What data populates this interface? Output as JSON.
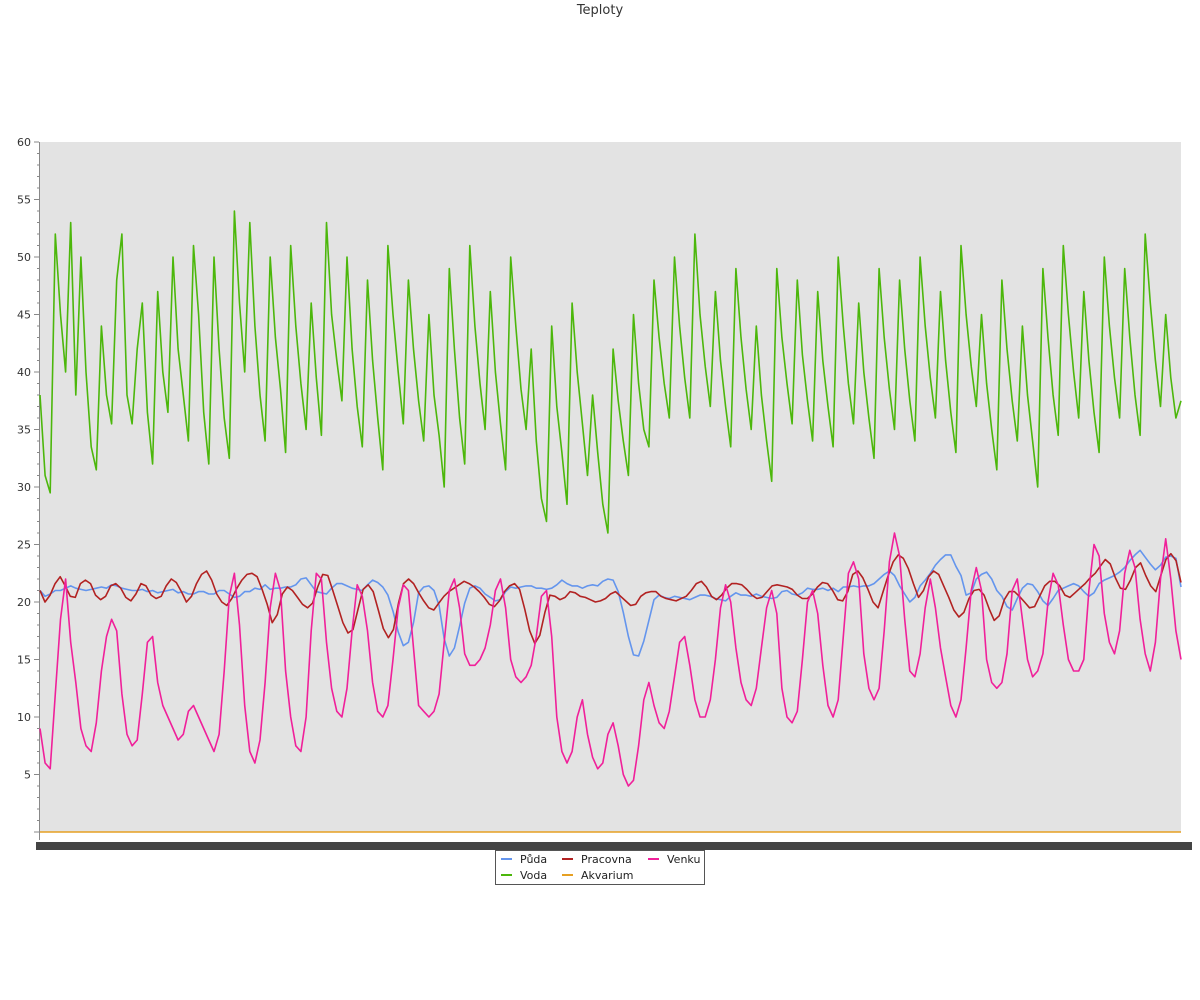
{
  "chart_data": {
    "type": "line",
    "title": "Teploty",
    "xlabel": "",
    "ylabel": "",
    "ylim": [
      0,
      60
    ],
    "yticks": [
      5,
      10,
      15,
      20,
      25,
      30,
      35,
      40,
      45,
      50,
      55,
      60
    ],
    "grid": false,
    "legend_position": "bottom-center",
    "background_color": "#e3e3e3",
    "x_count": 220,
    "series": [
      {
        "name": "Půda",
        "color": "#6495ed",
        "values": [
          21.0,
          20.5,
          20.7,
          21.0,
          21.0,
          21.2,
          21.4,
          21.2,
          21.1,
          21.0,
          21.1,
          21.2,
          21.3,
          21.2,
          21.5,
          21.4,
          21.2,
          21.1,
          21.0,
          21.0,
          21.1,
          20.9,
          21.0,
          20.8,
          20.9,
          21.0,
          21.1,
          20.8,
          20.9,
          20.7,
          20.7,
          20.9,
          20.9,
          20.7,
          20.7,
          21.0,
          21.0,
          20.7,
          20.4,
          20.5,
          20.9,
          20.9,
          21.2,
          21.1,
          21.5,
          21.1,
          21.2,
          21.2,
          21.3,
          21.3,
          21.5,
          22.0,
          22.1,
          21.5,
          20.9,
          20.8,
          20.7,
          21.2,
          21.6,
          21.6,
          21.4,
          21.2,
          21.1,
          21.0,
          21.5,
          21.9,
          21.7,
          21.3,
          20.6,
          19.2,
          17.4,
          16.2,
          16.5,
          18.2,
          20.8,
          21.3,
          21.4,
          21.0,
          19.7,
          16.8,
          15.3,
          16.0,
          17.9,
          19.9,
          21.2,
          21.4,
          21.2,
          20.7,
          20.4,
          20.1,
          20.2,
          20.9,
          21.3,
          21.2,
          21.3,
          21.4,
          21.4,
          21.2,
          21.2,
          21.1,
          21.2,
          21.5,
          21.9,
          21.6,
          21.4,
          21.4,
          21.2,
          21.4,
          21.5,
          21.4,
          21.8,
          22.0,
          21.9,
          20.9,
          19.1,
          17.0,
          15.4,
          15.3,
          16.6,
          18.4,
          20.2,
          20.6,
          20.4,
          20.3,
          20.5,
          20.4,
          20.3,
          20.2,
          20.4,
          20.6,
          20.6,
          20.5,
          20.3,
          20.2,
          20.1,
          20.5,
          20.8,
          20.6,
          20.6,
          20.5,
          20.7,
          20.5,
          20.4,
          20.3,
          20.4,
          20.9,
          21.0,
          20.7,
          20.6,
          20.8,
          21.2,
          21.1,
          21.1,
          21.2,
          21.0,
          21.2,
          20.9,
          21.3,
          21.3,
          21.4,
          21.3,
          21.4,
          21.4,
          21.6,
          22.0,
          22.4,
          22.7,
          22.3,
          21.4,
          20.7,
          20.0,
          20.4,
          21.4,
          21.9,
          22.5,
          23.2,
          23.7,
          24.1,
          24.1,
          23.1,
          22.3,
          20.6,
          20.8,
          22.0,
          22.4,
          22.6,
          22.0,
          21.0,
          20.5,
          19.6,
          19.3,
          20.3,
          21.2,
          21.6,
          21.5,
          20.9,
          20.1,
          19.7,
          20.3,
          21.0,
          21.2,
          21.4,
          21.6,
          21.4,
          20.9,
          20.5,
          20.8,
          21.6,
          21.9,
          22.1,
          22.3,
          22.6,
          23.0,
          23.6,
          24.1,
          24.5,
          23.9,
          23.3,
          22.8,
          23.2,
          23.9,
          24.0,
          23.8,
          21.3
        ]
      },
      {
        "name": "Pracovna",
        "color": "#b22222",
        "values": [
          21.0,
          20.0,
          20.6,
          21.6,
          22.2,
          21.4,
          20.5,
          20.4,
          21.6,
          21.9,
          21.6,
          20.6,
          20.2,
          20.5,
          21.4,
          21.6,
          21.2,
          20.4,
          20.1,
          20.7,
          21.6,
          21.4,
          20.6,
          20.3,
          20.5,
          21.4,
          22.0,
          21.7,
          20.9,
          20.0,
          20.5,
          21.6,
          22.4,
          22.7,
          21.9,
          20.7,
          20.0,
          19.7,
          20.3,
          21.2,
          21.9,
          22.4,
          22.5,
          22.2,
          21.1,
          19.8,
          18.2,
          18.9,
          20.7,
          21.3,
          21.0,
          20.4,
          19.8,
          19.5,
          19.9,
          21.3,
          22.4,
          22.3,
          21.0,
          19.6,
          18.2,
          17.3,
          17.6,
          19.4,
          21.1,
          21.5,
          20.9,
          19.3,
          17.7,
          16.9,
          17.6,
          19.9,
          21.6,
          22.0,
          21.6,
          20.8,
          20.1,
          19.5,
          19.3,
          19.9,
          20.5,
          20.9,
          21.2,
          21.5,
          21.8,
          21.6,
          21.3,
          20.9,
          20.4,
          19.8,
          19.6,
          20.1,
          20.9,
          21.4,
          21.6,
          21.1,
          19.4,
          17.5,
          16.4,
          17.1,
          19.1,
          20.6,
          20.5,
          20.2,
          20.4,
          20.9,
          20.8,
          20.5,
          20.4,
          20.2,
          20.0,
          20.1,
          20.3,
          20.7,
          20.9,
          20.5,
          20.1,
          19.7,
          19.8,
          20.5,
          20.8,
          20.9,
          20.9,
          20.5,
          20.3,
          20.2,
          20.1,
          20.3,
          20.5,
          21.0,
          21.6,
          21.8,
          21.3,
          20.5,
          20.2,
          20.6,
          21.2,
          21.6,
          21.6,
          21.5,
          21.1,
          20.6,
          20.3,
          20.4,
          20.9,
          21.4,
          21.5,
          21.4,
          21.3,
          21.1,
          20.6,
          20.3,
          20.3,
          20.7,
          21.3,
          21.7,
          21.6,
          21.0,
          20.2,
          20.1,
          20.9,
          22.4,
          22.7,
          22.1,
          21.1,
          20.0,
          19.5,
          20.9,
          22.3,
          23.5,
          24.1,
          23.8,
          22.9,
          21.6,
          20.4,
          21.0,
          22.2,
          22.7,
          22.4,
          21.4,
          20.4,
          19.3,
          18.7,
          19.1,
          20.3,
          21.0,
          21.1,
          20.6,
          19.4,
          18.4,
          18.8,
          20.2,
          20.9,
          20.9,
          20.5,
          20.0,
          19.5,
          19.6,
          20.5,
          21.4,
          21.8,
          21.8,
          21.4,
          20.6,
          20.4,
          20.8,
          21.2,
          21.6,
          22.1,
          22.5,
          23.1,
          23.7,
          23.3,
          22.1,
          21.2,
          21.1,
          21.9,
          23.0,
          23.4,
          22.3,
          21.4,
          20.9,
          22.3,
          23.7,
          24.2,
          23.6,
          21.7
        ]
      },
      {
        "name": "Venku",
        "color": "#f0209a",
        "values": [
          9.0,
          6.0,
          5.5,
          12.0,
          18.5,
          22.0,
          16.5,
          13.0,
          9.0,
          7.5,
          7.0,
          9.5,
          14.0,
          17.0,
          18.5,
          17.5,
          12.0,
          8.5,
          7.5,
          8.0,
          12.0,
          16.5,
          17.0,
          13.0,
          11.0,
          10.0,
          9.0,
          8.0,
          8.5,
          10.5,
          11.0,
          10.0,
          9.0,
          8.0,
          7.0,
          8.5,
          14.0,
          20.5,
          22.5,
          18.0,
          11.0,
          7.0,
          6.0,
          8.0,
          13.0,
          19.5,
          22.5,
          21.0,
          14.0,
          10.0,
          7.5,
          7.0,
          10.0,
          17.5,
          22.5,
          22.0,
          16.5,
          12.5,
          10.5,
          10.0,
          12.5,
          17.5,
          21.5,
          20.5,
          17.5,
          13.0,
          10.5,
          10.0,
          11.0,
          15.0,
          19.5,
          21.5,
          21.0,
          16.0,
          11.0,
          10.5,
          10.0,
          10.5,
          12.0,
          16.5,
          21.0,
          22.0,
          19.5,
          15.5,
          14.5,
          14.5,
          15.0,
          16.0,
          18.0,
          21.0,
          22.0,
          19.5,
          15.0,
          13.5,
          13.0,
          13.5,
          14.5,
          17.0,
          20.5,
          21.0,
          17.0,
          10.0,
          7.0,
          6.0,
          7.0,
          10.0,
          11.5,
          8.5,
          6.5,
          5.5,
          6.0,
          8.5,
          9.5,
          7.5,
          5.0,
          4.0,
          4.5,
          7.5,
          11.5,
          13.0,
          11.0,
          9.5,
          9.0,
          10.5,
          13.5,
          16.5,
          17.0,
          14.5,
          11.5,
          10.0,
          10.0,
          11.5,
          15.0,
          19.5,
          21.5,
          20.0,
          16.0,
          13.0,
          11.5,
          11.0,
          12.5,
          16.0,
          19.5,
          21.0,
          19.0,
          12.5,
          10.0,
          9.5,
          10.5,
          15.0,
          20.0,
          21.0,
          19.0,
          14.5,
          11.0,
          10.0,
          11.5,
          17.0,
          22.5,
          23.5,
          22.0,
          15.5,
          12.5,
          11.5,
          12.5,
          17.5,
          23.5,
          26.0,
          24.0,
          18.5,
          14.0,
          13.5,
          15.5,
          19.5,
          22.0,
          19.5,
          16.0,
          13.5,
          11.0,
          10.0,
          11.5,
          16.0,
          21.0,
          23.0,
          21.0,
          15.0,
          13.0,
          12.5,
          13.0,
          15.5,
          21.0,
          22.0,
          18.5,
          15.0,
          13.5,
          14.0,
          15.5,
          20.0,
          22.5,
          21.5,
          18.0,
          15.0,
          14.0,
          14.0,
          15.0,
          21.0,
          25.0,
          24.0,
          19.0,
          16.5,
          15.5,
          17.5,
          22.5,
          24.5,
          23.0,
          18.5,
          15.5,
          14.0,
          16.5,
          22.0,
          25.5,
          22.0,
          17.5,
          15.0
        ]
      },
      {
        "name": "Voda",
        "color": "#4cb70b",
        "values": [
          38.0,
          31.0,
          29.5,
          52.0,
          45.0,
          40.0,
          53.0,
          38.0,
          50.0,
          40.0,
          33.5,
          31.5,
          44.0,
          38.0,
          35.5,
          48.0,
          52.0,
          38.0,
          35.5,
          42.0,
          46.0,
          36.5,
          32.0,
          47.0,
          40.0,
          36.5,
          50.0,
          42.0,
          38.0,
          34.0,
          51.0,
          45.0,
          36.5,
          32.0,
          50.0,
          42.0,
          36.0,
          32.5,
          54.0,
          46.0,
          40.0,
          53.0,
          44.0,
          38.0,
          34.0,
          50.0,
          43.0,
          38.5,
          33.0,
          51.0,
          44.0,
          39.0,
          35.0,
          46.0,
          39.5,
          34.5,
          53.0,
          45.0,
          41.0,
          37.5,
          50.0,
          42.0,
          37.0,
          33.5,
          48.0,
          41.0,
          36.0,
          31.5,
          51.0,
          45.0,
          40.0,
          35.5,
          48.0,
          42.0,
          37.5,
          34.0,
          45.0,
          38.0,
          34.5,
          30.0,
          49.0,
          42.0,
          36.0,
          32.0,
          51.0,
          44.0,
          39.0,
          35.0,
          47.0,
          40.0,
          35.5,
          31.5,
          50.0,
          44.0,
          38.5,
          35.0,
          42.0,
          34.0,
          29.0,
          27.0,
          44.0,
          37.0,
          33.0,
          28.5,
          46.0,
          40.0,
          35.5,
          31.0,
          38.0,
          33.0,
          28.5,
          26.0,
          42.0,
          37.5,
          34.0,
          31.0,
          45.0,
          39.0,
          35.0,
          33.5,
          48.0,
          43.0,
          39.0,
          36.0,
          50.0,
          44.0,
          39.5,
          36.0,
          52.0,
          45.0,
          40.5,
          37.0,
          47.0,
          41.0,
          37.0,
          33.5,
          49.0,
          43.0,
          38.5,
          35.0,
          44.0,
          38.0,
          34.0,
          30.5,
          49.0,
          43.0,
          39.0,
          35.5,
          48.0,
          41.5,
          37.5,
          34.0,
          47.0,
          41.0,
          37.0,
          33.5,
          50.0,
          44.0,
          39.0,
          35.5,
          46.0,
          40.0,
          36.0,
          32.5,
          49.0,
          43.0,
          38.5,
          35.0,
          48.0,
          42.0,
          37.5,
          34.0,
          50.0,
          44.0,
          39.5,
          36.0,
          47.0,
          41.0,
          36.5,
          33.0,
          51.0,
          45.0,
          40.5,
          37.0,
          45.0,
          39.0,
          35.0,
          31.5,
          48.0,
          42.0,
          37.5,
          34.0,
          44.0,
          38.0,
          34.0,
          30.0,
          49.0,
          43.0,
          38.0,
          34.5,
          51.0,
          45.0,
          40.0,
          36.0,
          47.0,
          41.0,
          36.5,
          33.0,
          50.0,
          44.0,
          39.5,
          36.0,
          49.0,
          43.0,
          38.0,
          34.5,
          52.0,
          46.0,
          41.0,
          37.0,
          45.0,
          39.5,
          36.0,
          37.5
        ]
      },
      {
        "name": "Akvarium",
        "color": "#e6a023",
        "values": [
          0,
          0
        ]
      }
    ]
  }
}
